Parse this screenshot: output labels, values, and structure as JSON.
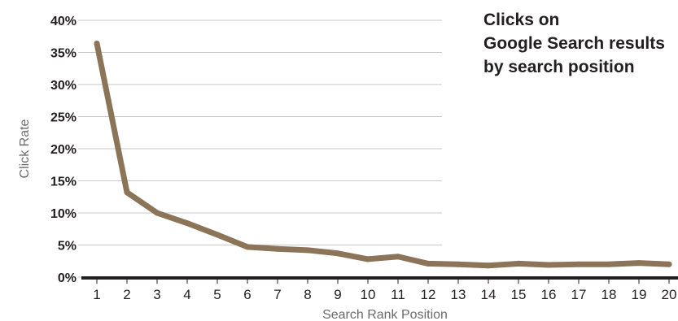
{
  "chart_data": {
    "type": "line",
    "title_lines": [
      "Clicks on",
      "Google Search results",
      "by search position"
    ],
    "xlabel": "Search Rank Position",
    "ylabel": "Click Rate",
    "x": [
      1,
      2,
      3,
      4,
      5,
      6,
      7,
      8,
      9,
      10,
      11,
      12,
      13,
      14,
      15,
      16,
      17,
      18,
      19,
      20
    ],
    "x_tick_labels": [
      "1",
      "2",
      "3",
      "4",
      "5",
      "6",
      "7",
      "8",
      "9",
      "10",
      "11",
      "12",
      "13",
      "14",
      "15",
      "16",
      "17",
      "18",
      "19",
      "20"
    ],
    "ylim": [
      0,
      40
    ],
    "y_ticks": [
      0,
      5,
      10,
      15,
      20,
      25,
      30,
      35,
      40
    ],
    "y_tick_labels": [
      "0%",
      "5%",
      "10%",
      "15%",
      "20%",
      "25%",
      "30%",
      "35%",
      "40%"
    ],
    "series": [
      {
        "values": [
          36.4,
          13.2,
          10.0,
          8.4,
          6.6,
          4.7,
          4.4,
          4.2,
          3.7,
          2.8,
          3.2,
          2.1,
          2.0,
          1.8,
          2.1,
          1.9,
          2.0,
          2.0,
          2.2,
          2.0
        ]
      }
    ],
    "grid": true,
    "line_color": "#8b7457",
    "axis_color": "#231f20",
    "grid_color": "#c8c8c8",
    "text_color": "#231f20",
    "label_color": "#6b6b6b"
  }
}
